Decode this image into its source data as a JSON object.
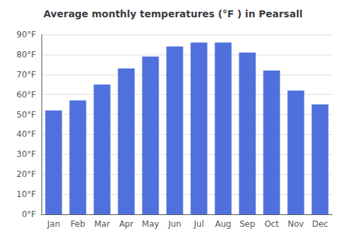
{
  "chart_data": {
    "type": "bar",
    "title": "Average monthly temperatures (°F ) in Pearsall",
    "categories": [
      "Jan",
      "Feb",
      "Mar",
      "Apr",
      "May",
      "Jun",
      "Jul",
      "Aug",
      "Sep",
      "Oct",
      "Nov",
      "Dec"
    ],
    "values": [
      52,
      57,
      65,
      73,
      79,
      84,
      86,
      86,
      81,
      72,
      62,
      55
    ],
    "ylim": [
      0,
      90
    ],
    "yticks": [
      {
        "value": 0,
        "label": "0°F"
      },
      {
        "value": 10,
        "label": "10°F"
      },
      {
        "value": 20,
        "label": "20°F"
      },
      {
        "value": 30,
        "label": "30°F"
      },
      {
        "value": 40,
        "label": "40°F"
      },
      {
        "value": 50,
        "label": "50°F"
      },
      {
        "value": 60,
        "label": "60°F"
      },
      {
        "value": 70,
        "label": "70°F"
      },
      {
        "value": 80,
        "label": "80°F"
      },
      {
        "value": 90,
        "label": "90°F"
      }
    ],
    "grid": true
  }
}
